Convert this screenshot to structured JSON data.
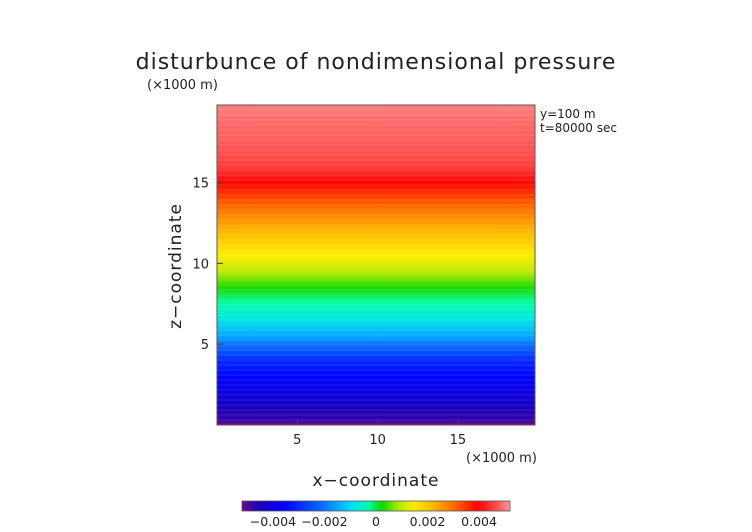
{
  "chart_data": {
    "type": "heatmap",
    "title": "disturbunce of nondimensional pressure",
    "xlabel": "x−coordinate",
    "ylabel": "z−coordinate",
    "x_unit": "(×1000 m)",
    "y_unit": "(×1000 m)",
    "annotations": [
      "y=100 m",
      "t=80000 sec"
    ],
    "xlim": [
      0,
      19.8
    ],
    "ylim": [
      0,
      19.8
    ],
    "x_ticks": [
      5,
      10,
      15
    ],
    "y_ticks": [
      5,
      10,
      15
    ],
    "x_tick_labels": [
      "5",
      "10",
      "15"
    ],
    "y_tick_labels": [
      "5",
      "10",
      "15"
    ],
    "color_range": [
      -0.0052,
      0.0052
    ],
    "colorbar_ticks": [
      -0.004,
      -0.002,
      0,
      0.002,
      0.004
    ],
    "colorbar_tick_labels": [
      "−0.004",
      "−0.002",
      "0",
      "0.002",
      "0.004"
    ],
    "field_profile": {
      "z": [
        0.0,
        0.3,
        1.0,
        2.0,
        3.0,
        4.0,
        5.0,
        5.5,
        6.5,
        7.5,
        8.5,
        9.5,
        10.5,
        12.0,
        13.5,
        15.0,
        16.0,
        17.0,
        18.0,
        19.0,
        19.8
      ],
      "value": [
        -0.0052,
        -0.0048,
        -0.0045,
        -0.004,
        -0.0035,
        -0.003,
        -0.002,
        -0.0015,
        -0.0008,
        -0.0003,
        0.0003,
        0.001,
        0.0015,
        0.0022,
        0.003,
        0.004,
        0.0045,
        0.0047,
        0.0048,
        0.0049,
        0.005
      ]
    }
  }
}
